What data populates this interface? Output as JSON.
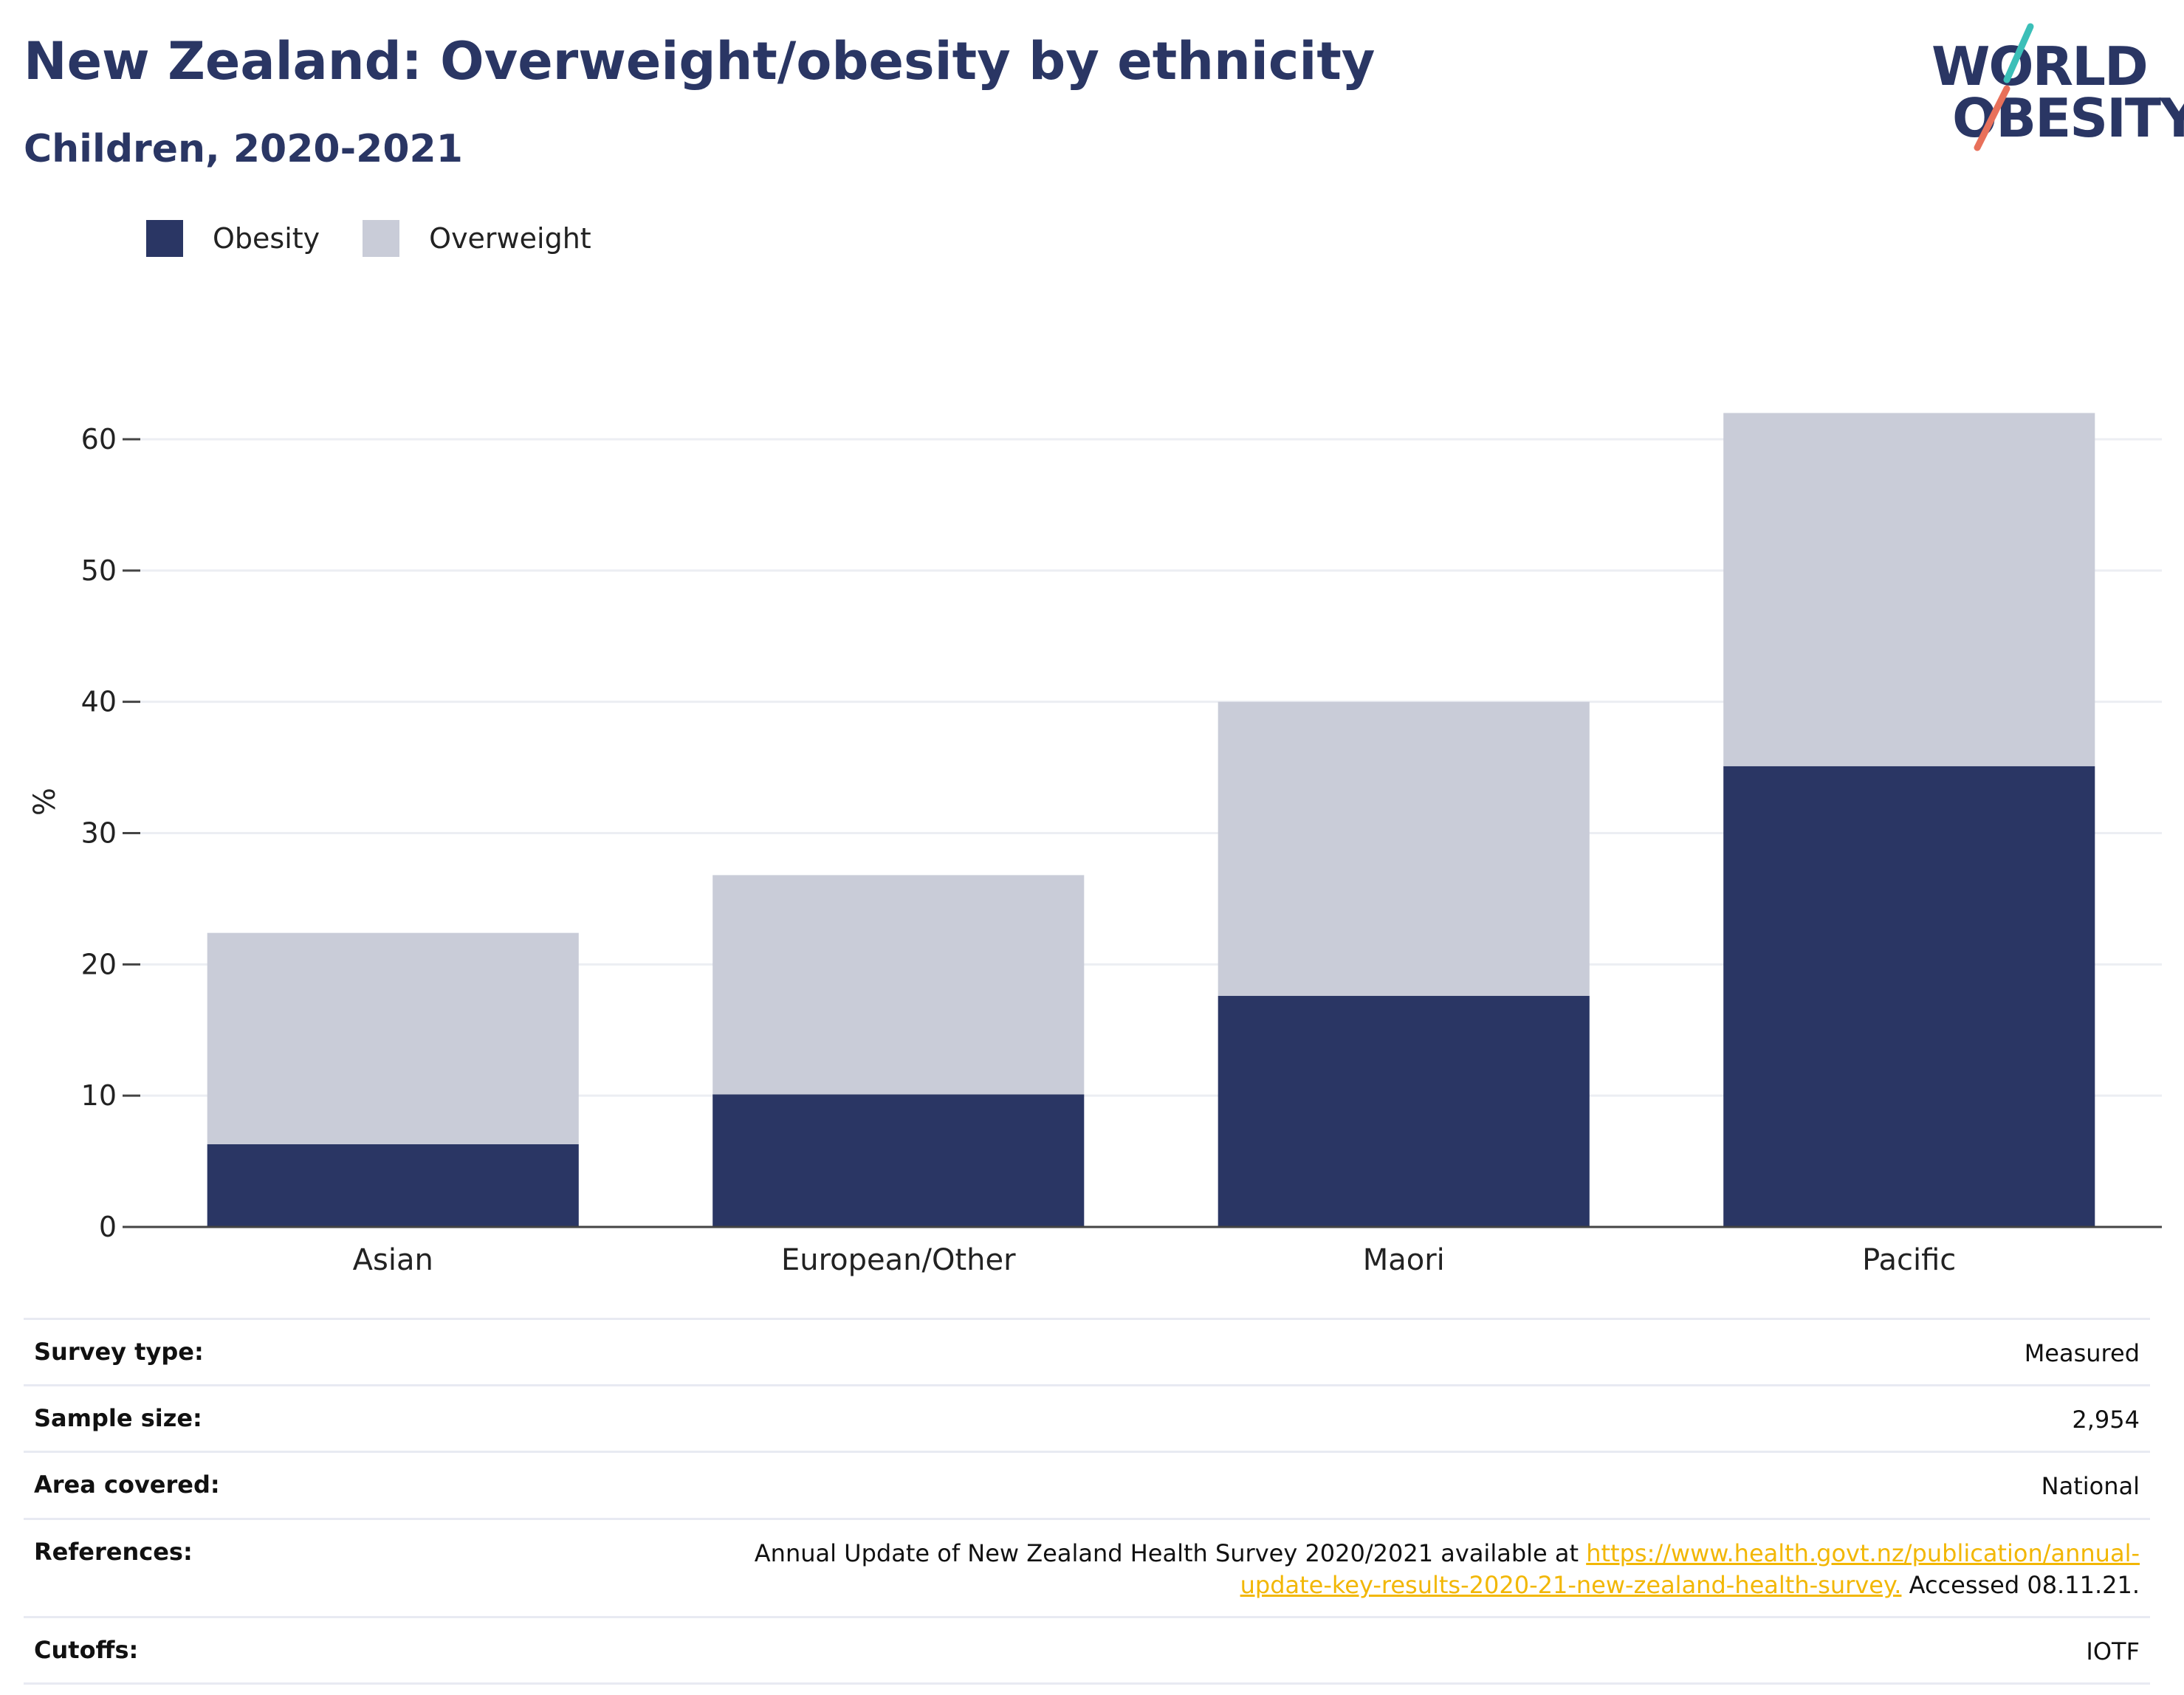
{
  "title": "New Zealand: Overweight/obesity by ethnicity",
  "subtitle": "Children, 2020-2021",
  "logo": {
    "line1": "WORLD",
    "line2": "OBESITY",
    "icon": "slash-o-logo"
  },
  "legend": [
    {
      "label": "Obesity",
      "color": "#2a3664"
    },
    {
      "label": "Overweight",
      "color": "#c9ccd8"
    }
  ],
  "chart_data": {
    "type": "bar",
    "stacked": true,
    "categories": [
      "Asian",
      "European/Other",
      "Maori",
      "Pacific"
    ],
    "series": [
      {
        "name": "Obesity",
        "color": "#2a3664",
        "values": [
          6.3,
          10.1,
          17.6,
          35.1
        ]
      },
      {
        "name": "Overweight",
        "color": "#c9ccd8",
        "values": [
          16.1,
          16.7,
          22.4,
          26.9
        ]
      }
    ],
    "ylabel": "%",
    "ylim": [
      0,
      65
    ],
    "yticks": [
      0,
      10,
      20,
      30,
      40,
      50,
      60
    ],
    "grid": true,
    "legend_position": "top-left"
  },
  "meta": {
    "survey_type": {
      "label": "Survey type:",
      "value": "Measured"
    },
    "sample_size": {
      "label": "Sample size:",
      "value": "2,954"
    },
    "area_covered": {
      "label": "Area covered:",
      "value": "National"
    },
    "references": {
      "label": "References:",
      "text_before": "Annual Update of New Zealand Health Survey 2020/2021 available at ",
      "link": "https://www.health.govt.nz/publication/annual-update-key-results-2020-21-new-zealand-health-survey.",
      "text_after": " Accessed 08.11.21."
    },
    "cutoffs": {
      "label": "Cutoffs:",
      "value": "IOTF"
    }
  }
}
